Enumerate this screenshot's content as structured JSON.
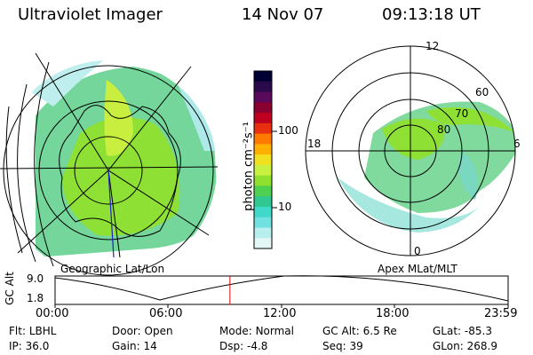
{
  "header": {
    "instrument": "Ultraviolet Imager",
    "date": "14 Nov 07",
    "time": "09:13:18 UT"
  },
  "left_panel": {
    "caption": "Geographic Lat/Lon"
  },
  "right_panel": {
    "caption": "Apex MLat/MLT",
    "mlt_labels": {
      "top": "12",
      "left": "18",
      "right": "6",
      "bottom": "0"
    },
    "lat_labels": [
      "60",
      "70",
      "80"
    ]
  },
  "colorbar": {
    "unit_label": "photon cm⁻²s⁻¹",
    "ticks": [
      "100",
      "10"
    ],
    "colors": [
      "#000033",
      "#2a0a4a",
      "#5a0a5a",
      "#8a0030",
      "#c00020",
      "#e83010",
      "#ff7a00",
      "#ffb000",
      "#f0e020",
      "#c8f040",
      "#90e030",
      "#50d050",
      "#30c890",
      "#40d8c8",
      "#70e0e0",
      "#b8eeee",
      "#e4f6f6"
    ]
  },
  "altitude_plot": {
    "ylabel": "GC Alt",
    "yticks": [
      "9.0",
      "1.8"
    ],
    "xticks": [
      "00:00",
      "06:00",
      "12:00",
      "18:00",
      "23:59"
    ],
    "current_time_fraction": 0.386
  },
  "footer": {
    "row1": [
      {
        "key": "Flt:",
        "val": "LBHL"
      },
      {
        "key": "Door:",
        "val": "Open"
      },
      {
        "key": "Mode:",
        "val": "Normal"
      },
      {
        "key": "GC Alt:",
        "val": "6.5 Re"
      },
      {
        "key": "GLat:",
        "val": "-85.3"
      }
    ],
    "row2": [
      {
        "key": "IP:",
        "val": "36.0"
      },
      {
        "key": "Gain:",
        "val": "14"
      },
      {
        "key": "Dsp:",
        "val": "-4.8"
      },
      {
        "key": "Seq:",
        "val": "39"
      },
      {
        "key": "GLon:",
        "val": "268.9"
      }
    ]
  }
}
